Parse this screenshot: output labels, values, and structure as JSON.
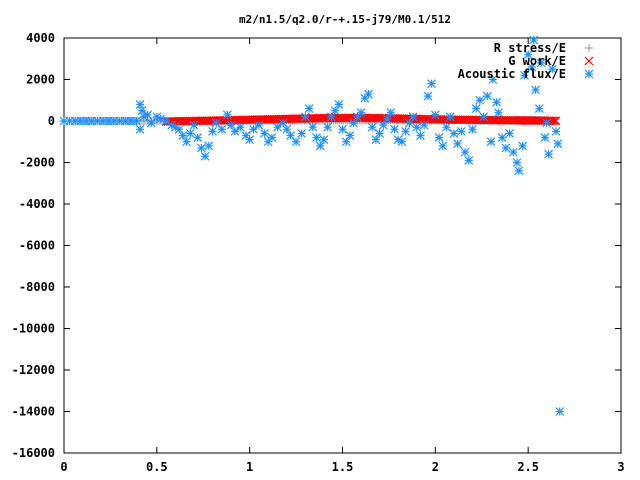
{
  "chart_data": {
    "type": "scatter",
    "title": "m2/n1.5/q2.0/r-+.15-j79/M0.1/512",
    "xlabel": "",
    "ylabel": "",
    "xlim": [
      0,
      3
    ],
    "ylim": [
      -16000,
      4000
    ],
    "x_ticks": [
      0,
      0.5,
      1,
      1.5,
      2,
      2.5,
      3
    ],
    "x_tick_labels": [
      "0",
      "0.5",
      "1",
      "1.5",
      "2",
      "2.5",
      "3"
    ],
    "y_ticks": [
      4000,
      2000,
      0,
      -2000,
      -4000,
      -6000,
      -8000,
      -10000,
      -12000,
      -14000,
      -16000
    ],
    "y_tick_labels": [
      "4000",
      "2000",
      "0",
      "-2000",
      "-4000",
      "-6000",
      "-8000",
      "-10000",
      "-12000",
      "-14000",
      "-16000"
    ],
    "grid": false,
    "legend_position": "top-right",
    "series": [
      {
        "name": "R stress/E",
        "marker": "plus",
        "color": "#a0a0a0",
        "points": [
          [
            0.05,
            0
          ],
          [
            0.3,
            0
          ],
          [
            0.55,
            0
          ],
          [
            0.8,
            10
          ],
          [
            1.0,
            20
          ],
          [
            1.2,
            20
          ],
          [
            1.4,
            30
          ],
          [
            1.6,
            30
          ],
          [
            1.8,
            40
          ],
          [
            2.0,
            40
          ],
          [
            2.2,
            50
          ],
          [
            2.4,
            50
          ],
          [
            2.6,
            50
          ]
        ]
      },
      {
        "name": "G work/E",
        "marker": "cross",
        "color": "#ff0000",
        "points": [
          [
            0.55,
            -30
          ],
          [
            0.6,
            -20
          ],
          [
            0.65,
            -10
          ],
          [
            0.7,
            0
          ],
          [
            0.75,
            10
          ],
          [
            0.8,
            20
          ],
          [
            0.85,
            30
          ],
          [
            0.9,
            40
          ],
          [
            0.95,
            50
          ],
          [
            1.0,
            60
          ],
          [
            1.05,
            70
          ],
          [
            1.1,
            80
          ],
          [
            1.15,
            90
          ],
          [
            1.2,
            100
          ],
          [
            1.25,
            110
          ],
          [
            1.3,
            120
          ],
          [
            1.35,
            130
          ],
          [
            1.4,
            140
          ],
          [
            1.45,
            140
          ],
          [
            1.5,
            150
          ],
          [
            1.55,
            150
          ],
          [
            1.6,
            150
          ],
          [
            1.65,
            140
          ],
          [
            1.7,
            140
          ],
          [
            1.75,
            130
          ],
          [
            1.8,
            120
          ],
          [
            1.85,
            110
          ],
          [
            1.9,
            100
          ],
          [
            1.95,
            90
          ],
          [
            2.0,
            80
          ],
          [
            2.05,
            70
          ],
          [
            2.1,
            60
          ],
          [
            2.15,
            60
          ],
          [
            2.2,
            50
          ],
          [
            2.25,
            50
          ],
          [
            2.3,
            40
          ],
          [
            2.35,
            40
          ],
          [
            2.4,
            30
          ],
          [
            2.45,
            30
          ],
          [
            2.5,
            20
          ],
          [
            2.55,
            20
          ],
          [
            2.6,
            10
          ],
          [
            2.65,
            10
          ]
        ]
      },
      {
        "name": "Acoustic flux/E",
        "marker": "star",
        "color": "#1e90ff",
        "points": [
          [
            0.0,
            0
          ],
          [
            0.03,
            0
          ],
          [
            0.06,
            0
          ],
          [
            0.09,
            0
          ],
          [
            0.12,
            0
          ],
          [
            0.15,
            0
          ],
          [
            0.18,
            0
          ],
          [
            0.21,
            0
          ],
          [
            0.24,
            0
          ],
          [
            0.27,
            0
          ],
          [
            0.3,
            0
          ],
          [
            0.33,
            0
          ],
          [
            0.36,
            0
          ],
          [
            0.39,
            0
          ],
          [
            0.41,
            800
          ],
          [
            0.41,
            -400
          ],
          [
            0.42,
            500
          ],
          [
            0.43,
            200
          ],
          [
            0.45,
            300
          ],
          [
            0.47,
            -100
          ],
          [
            0.5,
            200
          ],
          [
            0.52,
            100
          ],
          [
            0.55,
            0
          ],
          [
            0.58,
            -200
          ],
          [
            0.6,
            -300
          ],
          [
            0.62,
            -400
          ],
          [
            0.64,
            -700
          ],
          [
            0.66,
            -1000
          ],
          [
            0.68,
            -600
          ],
          [
            0.7,
            -200
          ],
          [
            0.72,
            -800
          ],
          [
            0.74,
            -1300
          ],
          [
            0.76,
            -1700
          ],
          [
            0.78,
            -1200
          ],
          [
            0.8,
            -500
          ],
          [
            0.82,
            -100
          ],
          [
            0.85,
            -400
          ],
          [
            0.88,
            300
          ],
          [
            0.9,
            -200
          ],
          [
            0.92,
            -500
          ],
          [
            0.95,
            -300
          ],
          [
            0.98,
            -700
          ],
          [
            1.0,
            -900
          ],
          [
            1.02,
            -400
          ],
          [
            1.05,
            -200
          ],
          [
            1.08,
            -600
          ],
          [
            1.1,
            -1000
          ],
          [
            1.12,
            -800
          ],
          [
            1.15,
            -300
          ],
          [
            1.18,
            -100
          ],
          [
            1.2,
            -400
          ],
          [
            1.22,
            -700
          ],
          [
            1.25,
            -1000
          ],
          [
            1.28,
            -600
          ],
          [
            1.3,
            200
          ],
          [
            1.32,
            600
          ],
          [
            1.34,
            -300
          ],
          [
            1.36,
            -800
          ],
          [
            1.38,
            -1200
          ],
          [
            1.4,
            -900
          ],
          [
            1.42,
            -300
          ],
          [
            1.44,
            200
          ],
          [
            1.46,
            500
          ],
          [
            1.48,
            800
          ],
          [
            1.5,
            -400
          ],
          [
            1.52,
            -1000
          ],
          [
            1.54,
            -700
          ],
          [
            1.56,
            -100
          ],
          [
            1.58,
            200
          ],
          [
            1.6,
            400
          ],
          [
            1.62,
            1100
          ],
          [
            1.64,
            1300
          ],
          [
            1.66,
            -300
          ],
          [
            1.68,
            -900
          ],
          [
            1.7,
            -600
          ],
          [
            1.72,
            -200
          ],
          [
            1.74,
            100
          ],
          [
            1.76,
            400
          ],
          [
            1.78,
            -400
          ],
          [
            1.8,
            -900
          ],
          [
            1.82,
            -1000
          ],
          [
            1.84,
            -500
          ],
          [
            1.86,
            -100
          ],
          [
            1.88,
            200
          ],
          [
            1.9,
            -300
          ],
          [
            1.92,
            -700
          ],
          [
            1.94,
            -200
          ],
          [
            1.96,
            1200
          ],
          [
            1.98,
            1800
          ],
          [
            2.0,
            300
          ],
          [
            2.02,
            -800
          ],
          [
            2.04,
            -1200
          ],
          [
            2.06,
            -300
          ],
          [
            2.08,
            200
          ],
          [
            2.1,
            -600
          ],
          [
            2.12,
            -1100
          ],
          [
            2.14,
            -500
          ],
          [
            2.16,
            -1500
          ],
          [
            2.18,
            -1900
          ],
          [
            2.2,
            -400
          ],
          [
            2.22,
            600
          ],
          [
            2.24,
            1000
          ],
          [
            2.26,
            200
          ],
          [
            2.28,
            1200
          ],
          [
            2.3,
            -1000
          ],
          [
            2.31,
            2000
          ],
          [
            2.33,
            900
          ],
          [
            2.34,
            400
          ],
          [
            2.36,
            -800
          ],
          [
            2.38,
            -1300
          ],
          [
            2.4,
            -600
          ],
          [
            2.42,
            -1500
          ],
          [
            2.44,
            -2000
          ],
          [
            2.45,
            -2400
          ],
          [
            2.47,
            -1200
          ],
          [
            2.48,
            2200
          ],
          [
            2.5,
            3200
          ],
          [
            2.52,
            2600
          ],
          [
            2.53,
            3900
          ],
          [
            2.54,
            1500
          ],
          [
            2.56,
            600
          ],
          [
            2.57,
            2800
          ],
          [
            2.59,
            -800
          ],
          [
            2.6,
            -100
          ],
          [
            2.61,
            -1600
          ],
          [
            2.63,
            2500
          ],
          [
            2.65,
            -500
          ],
          [
            2.66,
            -1100
          ],
          [
            2.67,
            -14000
          ]
        ]
      }
    ]
  }
}
